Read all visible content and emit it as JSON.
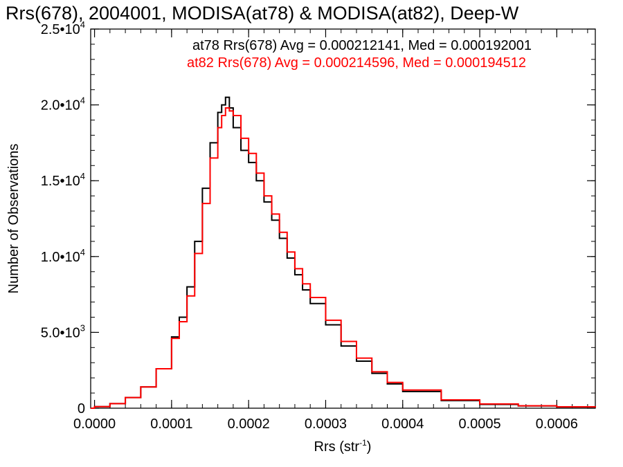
{
  "chart_data": {
    "type": "line",
    "title": "Rrs(678), 2004001, MODISA(at78) & MODISA(at82), Deep-W",
    "xlabel": "Rrs (str",
    "xlabel_superscript": "-1",
    "xlabel_suffix": ")",
    "ylabel": "Number of Observations",
    "xlim": [
      -5e-06,
      0.00065
    ],
    "ylim": [
      0,
      25000
    ],
    "grid": false,
    "legend_placement": "top-right",
    "x_ticks": [
      {
        "value": 0.0,
        "label": "0.0000"
      },
      {
        "value": 0.0001,
        "label": "0.0001"
      },
      {
        "value": 0.0002,
        "label": "0.0002"
      },
      {
        "value": 0.0003,
        "label": "0.0003"
      },
      {
        "value": 0.0004,
        "label": "0.0004"
      },
      {
        "value": 0.0005,
        "label": "0.0005"
      },
      {
        "value": 0.0006,
        "label": "0.0006"
      }
    ],
    "y_ticks": [
      {
        "value": 0,
        "mantissa": "0",
        "exponent": ""
      },
      {
        "value": 5000,
        "mantissa": "5.0•10",
        "exponent": "3"
      },
      {
        "value": 10000,
        "mantissa": "1.0•10",
        "exponent": "4"
      },
      {
        "value": 15000,
        "mantissa": "1.5•10",
        "exponent": "4"
      },
      {
        "value": 20000,
        "mantissa": "2.0•10",
        "exponent": "4"
      },
      {
        "value": 25000,
        "mantissa": "2.5•10",
        "exponent": "4"
      }
    ],
    "annotations": [
      "at78 Rrs(678) Avg = 0.000212141, Med = 0.000192001",
      "at82 Rrs(678) Avg = 0.000214596, Med = 0.000194512"
    ],
    "series": [
      {
        "color": "#000000",
        "x": [
          -5e-06,
          0.0,
          2e-05,
          4e-05,
          6e-05,
          8e-05,
          0.0001,
          0.00011,
          0.00012,
          0.00013,
          0.00014,
          0.00015,
          0.00016,
          0.000165,
          0.00017,
          0.000175,
          0.00018,
          0.00019,
          0.0002,
          0.00021,
          0.00022,
          0.00023,
          0.00024,
          0.00025,
          0.00026,
          0.00027,
          0.00028,
          0.0003,
          0.00032,
          0.00034,
          0.00036,
          0.00038,
          0.0004,
          0.00045,
          0.0005,
          0.00055,
          0.0006,
          0.00065
        ],
        "y": [
          0,
          100,
          300,
          700,
          1400,
          2600,
          4700,
          6000,
          8000,
          11000,
          14500,
          17500,
          19500,
          20000,
          20500,
          19800,
          18500,
          17000,
          16200,
          15000,
          13600,
          12400,
          11200,
          9900,
          8800,
          7800,
          6900,
          5500,
          4100,
          3100,
          2300,
          1600,
          1100,
          500,
          250,
          150,
          80,
          40
        ]
      },
      {
        "color": "#ff0000",
        "x": [
          -5e-06,
          0.0,
          2e-05,
          4e-05,
          6e-05,
          8e-05,
          0.0001,
          0.00011,
          0.00012,
          0.00013,
          0.00014,
          0.00015,
          0.00016,
          0.000165,
          0.00017,
          0.000175,
          0.00018,
          0.00019,
          0.0002,
          0.00021,
          0.00022,
          0.00023,
          0.00024,
          0.00025,
          0.00026,
          0.00027,
          0.00028,
          0.0003,
          0.00032,
          0.00034,
          0.00036,
          0.00038,
          0.0004,
          0.00045,
          0.0005,
          0.00055,
          0.0006,
          0.00065
        ],
        "y": [
          0,
          100,
          300,
          700,
          1400,
          2600,
          4600,
          5700,
          7400,
          10200,
          13500,
          16500,
          18500,
          19300,
          19800,
          19600,
          19300,
          17800,
          16800,
          15500,
          14000,
          12800,
          11600,
          10300,
          9200,
          8200,
          7300,
          5800,
          4400,
          3300,
          2400,
          1700,
          1200,
          550,
          280,
          160,
          90,
          50
        ]
      }
    ]
  }
}
